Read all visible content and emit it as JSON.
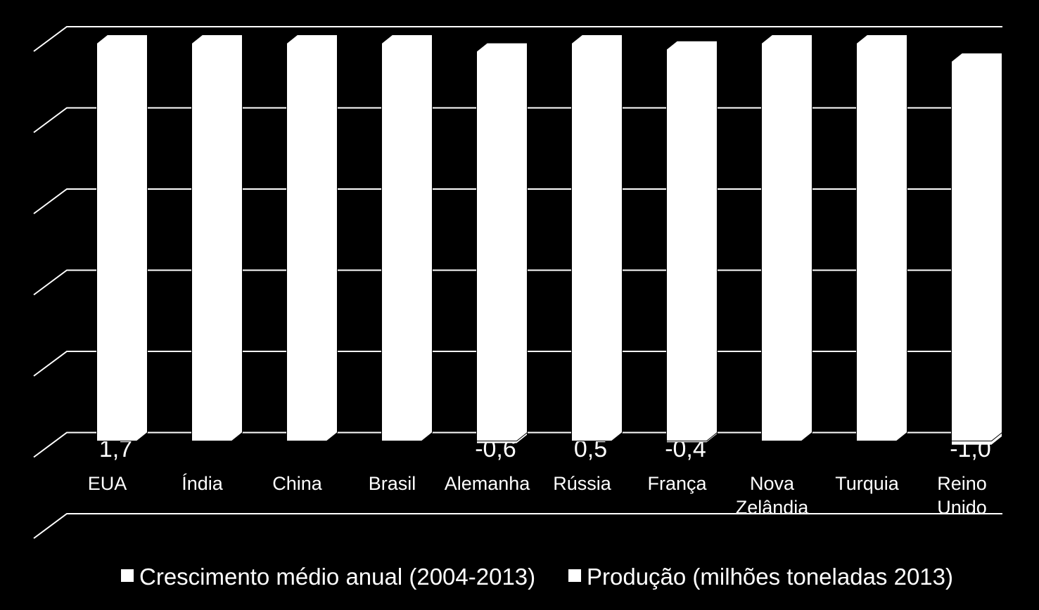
{
  "chart_data": {
    "type": "bar3d",
    "categories": [
      "EUA",
      "Índia",
      "China",
      "Brasil",
      "Alemanha",
      "Rússia",
      "França",
      "Nova Zelândia",
      "Turquia",
      "Reino Unido"
    ],
    "series": [
      {
        "name": "Crescimento médio anual (2004-2013)",
        "color": "#ffffff",
        "values": [
          1.7,
          null,
          null,
          null,
          -0.6,
          0.5,
          -0.4,
          null,
          null,
          -1.0
        ],
        "value_labels": [
          "1,7",
          null,
          null,
          null,
          "-0,6",
          "0,5",
          "-0,4",
          null,
          null,
          "-1,0"
        ]
      },
      {
        "name": "Produção (milhões toneladas 2013)",
        "color": "#ffffff",
        "values": [
          98,
          98,
          98,
          98,
          96,
          98,
          96.5,
          98,
          98,
          93.5
        ]
      }
    ],
    "ylim": [
      -20,
      100
    ],
    "yticks": [
      -20,
      0,
      20,
      40,
      60,
      80,
      100
    ],
    "grid": true
  }
}
